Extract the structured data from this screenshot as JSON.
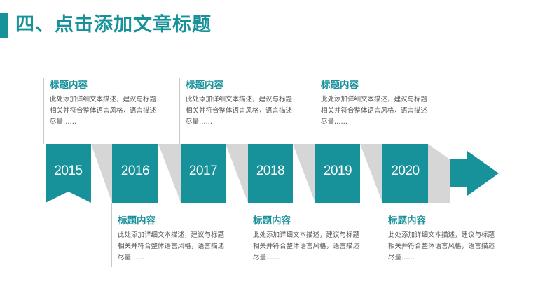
{
  "theme": {
    "accent": "#18929a",
    "shadow": "#d6d6d6"
  },
  "header": {
    "title": "四、点击添加文章标题"
  },
  "timeline": {
    "years": [
      "2015",
      "2016",
      "2017",
      "2018",
      "2019",
      "2020"
    ],
    "entries": [
      {
        "title": "标题内容",
        "desc": "此处添加详细文本描述，建议与标题相关并符合整体语言风格，语言描述尽量……"
      },
      {
        "title": "标题内容",
        "desc": "此处添加详细文本描述，建议与标题相关并符合整体语言风格，语言描述尽量……"
      },
      {
        "title": "标题内容",
        "desc": "此处添加详细文本描述，建议与标题相关并符合整体语言风格，语言描述尽量……"
      },
      {
        "title": "标题内容",
        "desc": "此处添加详细文本描述，建议与标题相关并符合整体语言风格，语言描述尽量……"
      },
      {
        "title": "标题内容",
        "desc": "此处添加详细文本描述，建议与标题相关并符合整体语言风格，语言描述尽量……"
      },
      {
        "title": "标题内容",
        "desc": "此处添加详细文本描述，建议与标题相关并符合整体语言风格，语言描述尽量……"
      }
    ]
  }
}
